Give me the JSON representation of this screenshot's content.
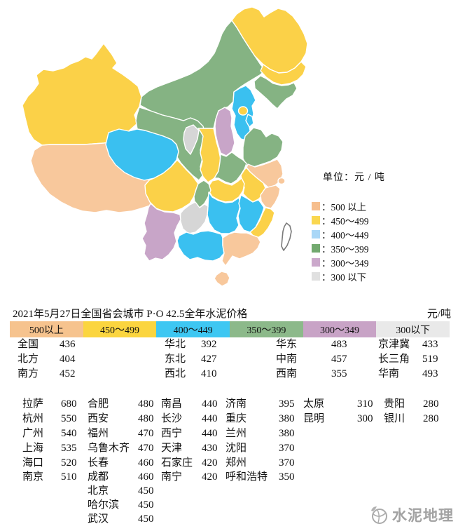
{
  "map": {
    "legend_title": "单位：元 / 吨",
    "legend_items": [
      {
        "label": "：500 以上",
        "color": "#F6BE8D"
      },
      {
        "label": "：450～499",
        "color": "#FAD74F"
      },
      {
        "label": "：400～449",
        "color": "#A9D7F7"
      },
      {
        "label": "：350～399",
        "color": "#72A96F"
      },
      {
        "label": "：300～349",
        "color": "#CBA8CB"
      },
      {
        "label": "：300 以下",
        "color": "#E0E0E0"
      }
    ],
    "palette": {
      "p500": "#F8C89C",
      "p450": "#FBD148",
      "p400": "#3AC0F0",
      "p350": "#85B383",
      "p300": "#C8A5C8",
      "p299": "#D6D6D6",
      "none": "#FFFFFF"
    },
    "provinces": {
      "xinjiang": "p450",
      "tibet": "p500",
      "qinghai": "p400",
      "gansu": "p350",
      "inner-mongolia": "p350",
      "ningxia": "p299",
      "shaanxi": "p450",
      "shanxi": "p300",
      "hebei": "p400",
      "beijing": "p450",
      "tianjin": "p400",
      "heilongjiang": "p450",
      "jilin": "p450",
      "liaoning": "p350",
      "shandong": "p350",
      "henan": "p350",
      "jiangsu": "p500",
      "anhui": "p450",
      "shanghai": "p500",
      "zhejiang": "p500",
      "hubei": "p450",
      "jiangxi": "p400",
      "hunan": "p400",
      "fujian": "p450",
      "guangdong": "p500",
      "guangxi": "p400",
      "hainan": "p500",
      "guizhou": "p299",
      "yunnan": "p300",
      "sichuan": "p450",
      "chongqing": "p350",
      "taiwan": "none"
    }
  },
  "table": {
    "title": "2021年5月27日全国省会城市 P·O 42.5全年水泥价格",
    "unit": "元/吨",
    "bands": [
      {
        "label": "500以上",
        "color": "#F6C38E"
      },
      {
        "label": "450～499",
        "color": "#FBD53F"
      },
      {
        "label": "400～449",
        "color": "#3EC7F2"
      },
      {
        "label": "350～399",
        "color": "#8CB98A"
      },
      {
        "label": "300～349",
        "color": "#C8A3C6"
      },
      {
        "label": "300以下",
        "color": "#E9E9E9"
      }
    ],
    "region_rows": [
      [
        "全国",
        "436",
        "华北",
        "392",
        "华东",
        "483",
        "京津冀",
        "433"
      ],
      [
        "北方",
        "404",
        "东北",
        "427",
        "中南",
        "457",
        "长三角",
        "519"
      ],
      [
        "南方",
        "452",
        "西北",
        "410",
        "西南",
        "355",
        "华南",
        "493"
      ]
    ],
    "city_rows": [
      [
        "拉萨",
        "680",
        "合肥",
        "480",
        "南昌",
        "440",
        "济南",
        "395",
        "太原",
        "310",
        "贵阳",
        "280"
      ],
      [
        "杭州",
        "550",
        "西安",
        "480",
        "长沙",
        "440",
        "重庆",
        "380",
        "昆明",
        "300",
        "银川",
        "280"
      ],
      [
        "广州",
        "540",
        "福州",
        "470",
        "西宁",
        "440",
        "兰州",
        "380",
        "",
        "",
        "",
        ""
      ],
      [
        "上海",
        "535",
        "乌鲁木齐",
        "470",
        "天津",
        "430",
        "沈阳",
        "370",
        "",
        "",
        "",
        ""
      ],
      [
        "海口",
        "520",
        "长春",
        "460",
        "石家庄",
        "420",
        "郑州",
        "370",
        "",
        "",
        "",
        ""
      ],
      [
        "南京",
        "510",
        "成都",
        "460",
        "南宁",
        "420",
        "呼和浩特",
        "350",
        "",
        "",
        "",
        ""
      ],
      [
        "",
        "",
        "北京",
        "450",
        "",
        "",
        "",
        "",
        "",
        "",
        ""
      ],
      [
        "",
        "",
        "哈尔滨",
        "450",
        "",
        "",
        "",
        "",
        "",
        "",
        ""
      ],
      [
        "",
        "",
        "武汉",
        "450",
        "",
        "",
        "",
        "",
        "",
        "",
        ""
      ]
    ]
  },
  "watermark": {
    "text": "水泥地理"
  },
  "chart_data": {
    "type": "heatmap",
    "title": "2021年5月27日全国省会城市 P·O 42.5全年水泥价格",
    "unit": "元/吨",
    "legend_bins": [
      "500以上",
      "450～499",
      "400～449",
      "350～399",
      "300～349",
      "300以下"
    ],
    "regions": [
      {
        "name": "全国",
        "value": 436
      },
      {
        "name": "北方",
        "value": 404
      },
      {
        "name": "南方",
        "value": 452
      },
      {
        "name": "华北",
        "value": 392
      },
      {
        "name": "东北",
        "value": 427
      },
      {
        "name": "西北",
        "value": 410
      },
      {
        "name": "华东",
        "value": 483
      },
      {
        "name": "中南",
        "value": 457
      },
      {
        "name": "西南",
        "value": 355
      },
      {
        "name": "京津冀",
        "value": 433
      },
      {
        "name": "长三角",
        "value": 519
      },
      {
        "name": "华南",
        "value": 493
      }
    ],
    "cities": [
      {
        "name": "拉萨",
        "value": 680
      },
      {
        "name": "杭州",
        "value": 550
      },
      {
        "name": "广州",
        "value": 540
      },
      {
        "name": "上海",
        "value": 535
      },
      {
        "name": "海口",
        "value": 520
      },
      {
        "name": "南京",
        "value": 510
      },
      {
        "name": "合肥",
        "value": 480
      },
      {
        "name": "西安",
        "value": 480
      },
      {
        "name": "福州",
        "value": 470
      },
      {
        "name": "乌鲁木齐",
        "value": 470
      },
      {
        "name": "长春",
        "value": 460
      },
      {
        "name": "成都",
        "value": 460
      },
      {
        "name": "北京",
        "value": 450
      },
      {
        "name": "哈尔滨",
        "value": 450
      },
      {
        "name": "武汉",
        "value": 450
      },
      {
        "name": "南昌",
        "value": 440
      },
      {
        "name": "长沙",
        "value": 440
      },
      {
        "name": "西宁",
        "value": 440
      },
      {
        "name": "天津",
        "value": 430
      },
      {
        "name": "石家庄",
        "value": 420
      },
      {
        "name": "南宁",
        "value": 420
      },
      {
        "name": "济南",
        "value": 395
      },
      {
        "name": "重庆",
        "value": 380
      },
      {
        "name": "兰州",
        "value": 380
      },
      {
        "name": "沈阳",
        "value": 370
      },
      {
        "name": "郑州",
        "value": 370
      },
      {
        "name": "呼和浩特",
        "value": 350
      },
      {
        "name": "太原",
        "value": 310
      },
      {
        "name": "昆明",
        "value": 300
      },
      {
        "name": "贵阳",
        "value": 280
      },
      {
        "name": "银川",
        "value": 280
      }
    ]
  }
}
